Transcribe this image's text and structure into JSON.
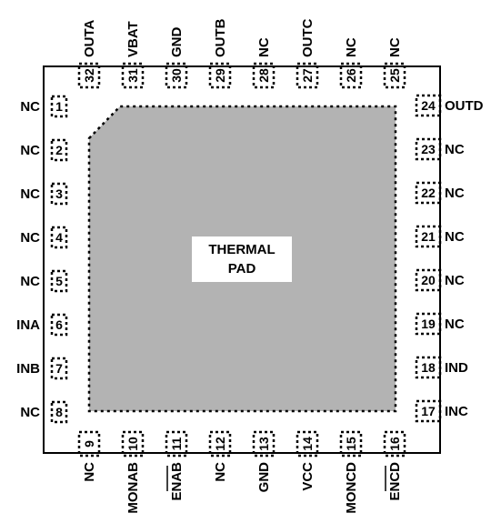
{
  "thermal_pad": {
    "line1": "THERMAL",
    "line2": "PAD"
  },
  "left_pins": [
    {
      "num": "1",
      "name": "NC"
    },
    {
      "num": "2",
      "name": "NC"
    },
    {
      "num": "3",
      "name": "NC"
    },
    {
      "num": "4",
      "name": "NC"
    },
    {
      "num": "5",
      "name": "NC"
    },
    {
      "num": "6",
      "name": "INA"
    },
    {
      "num": "7",
      "name": "INB"
    },
    {
      "num": "8",
      "name": "NC"
    }
  ],
  "bottom_pins": [
    {
      "num": "9",
      "name": "NC",
      "overbar": false
    },
    {
      "num": "10",
      "name": "MONAB",
      "overbar": false
    },
    {
      "num": "11",
      "name": "ENAB",
      "overbar": true
    },
    {
      "num": "12",
      "name": "NC",
      "overbar": false
    },
    {
      "num": "13",
      "name": "GND",
      "overbar": false
    },
    {
      "num": "14",
      "name": "VCC",
      "overbar": false
    },
    {
      "num": "15",
      "name": "MONCD",
      "overbar": false
    },
    {
      "num": "16",
      "name": "ENCD",
      "overbar": true
    }
  ],
  "right_pins": [
    {
      "num": "17",
      "name": "INC"
    },
    {
      "num": "18",
      "name": "IND"
    },
    {
      "num": "19",
      "name": "NC"
    },
    {
      "num": "20",
      "name": "NC"
    },
    {
      "num": "21",
      "name": "NC"
    },
    {
      "num": "22",
      "name": "NC"
    },
    {
      "num": "23",
      "name": "NC"
    },
    {
      "num": "24",
      "name": "OUTD"
    }
  ],
  "top_pins": [
    {
      "num": "25",
      "name": "NC"
    },
    {
      "num": "26",
      "name": "NC"
    },
    {
      "num": "27",
      "name": "OUTC"
    },
    {
      "num": "28",
      "name": "NC"
    },
    {
      "num": "29",
      "name": "OUTB"
    },
    {
      "num": "30",
      "name": "GND"
    },
    {
      "num": "31",
      "name": "VBAT"
    },
    {
      "num": "32",
      "name": "OUTA"
    }
  ]
}
